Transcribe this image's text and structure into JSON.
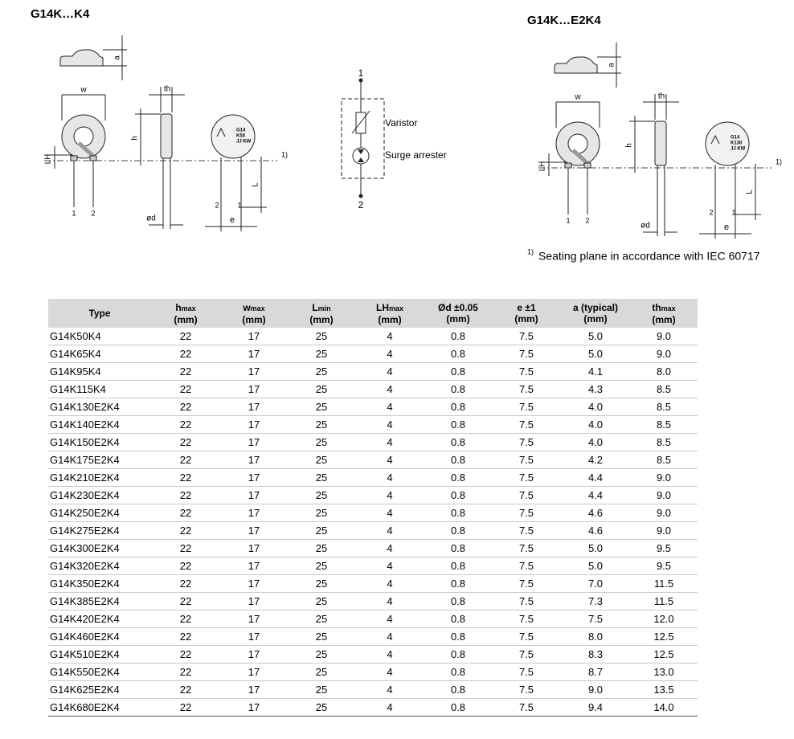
{
  "diagram_left": {
    "title": "G14K…K4",
    "labels": {
      "a": "a",
      "w": "w",
      "th": "th",
      "h": "h",
      "lh": "LH",
      "pin1": "1",
      "pin2": "2",
      "d": "ød",
      "e": "e",
      "L": "L",
      "pin2b": "2",
      "pin1b": "1",
      "note": "1)"
    },
    "marking": [
      "G14",
      "K50",
      "JJ KW"
    ]
  },
  "diagram_right": {
    "title": "G14K…E2K4",
    "labels": {
      "a": "a",
      "w": "w",
      "th": "th",
      "h": "h",
      "lh": "LH",
      "pin1": "1",
      "pin2": "2",
      "d": "ød",
      "e": "e",
      "L": "L",
      "pin2b": "2",
      "pin1b": "1",
      "note": "1)"
    },
    "marking": [
      "G14",
      "K130",
      "JJ KW"
    ]
  },
  "symbol": {
    "top": "1",
    "bottom": "2",
    "varistor": "Varistor",
    "arrester": "Surge arrester"
  },
  "footnote": {
    "mark": "1)",
    "text": "Seating plane in accordance with IEC 60717"
  },
  "table": {
    "header": [
      {
        "label": "Type"
      },
      {
        "label": "h",
        "sub": "max",
        "unit": "(mm)"
      },
      {
        "label": "w",
        "sub": "max",
        "unit": "(mm)"
      },
      {
        "label": "L",
        "sub": "min",
        "unit": "(mm)"
      },
      {
        "label": "LH",
        "sub": "max",
        "unit": "(mm)"
      },
      {
        "label": "Ød ±0.05",
        "unit": "(mm)"
      },
      {
        "label": "e ±1",
        "unit": "(mm)"
      },
      {
        "label": "a (typical)",
        "unit": "(mm)"
      },
      {
        "label": "th",
        "sub": "max",
        "unit": "(mm)"
      }
    ],
    "rows": [
      [
        "G14K50K4",
        "22",
        "17",
        "25",
        "4",
        "0.8",
        "7.5",
        "5.0",
        "9.0"
      ],
      [
        "G14K65K4",
        "22",
        "17",
        "25",
        "4",
        "0.8",
        "7.5",
        "5.0",
        "9.0"
      ],
      [
        "G14K95K4",
        "22",
        "17",
        "25",
        "4",
        "0.8",
        "7.5",
        "4.1",
        "8.0"
      ],
      [
        "G14K115K4",
        "22",
        "17",
        "25",
        "4",
        "0.8",
        "7.5",
        "4.3",
        "8.5"
      ],
      [
        "G14K130E2K4",
        "22",
        "17",
        "25",
        "4",
        "0.8",
        "7.5",
        "4.0",
        "8.5"
      ],
      [
        "G14K140E2K4",
        "22",
        "17",
        "25",
        "4",
        "0.8",
        "7.5",
        "4.0",
        "8.5"
      ],
      [
        "G14K150E2K4",
        "22",
        "17",
        "25",
        "4",
        "0.8",
        "7.5",
        "4.0",
        "8.5"
      ],
      [
        "G14K175E2K4",
        "22",
        "17",
        "25",
        "4",
        "0.8",
        "7.5",
        "4.2",
        "8.5"
      ],
      [
        "G14K210E2K4",
        "22",
        "17",
        "25",
        "4",
        "0.8",
        "7.5",
        "4.4",
        "9.0"
      ],
      [
        "G14K230E2K4",
        "22",
        "17",
        "25",
        "4",
        "0.8",
        "7.5",
        "4.4",
        "9.0"
      ],
      [
        "G14K250E2K4",
        "22",
        "17",
        "25",
        "4",
        "0.8",
        "7.5",
        "4.6",
        "9.0"
      ],
      [
        "G14K275E2K4",
        "22",
        "17",
        "25",
        "4",
        "0.8",
        "7.5",
        "4.6",
        "9.0"
      ],
      [
        "G14K300E2K4",
        "22",
        "17",
        "25",
        "4",
        "0.8",
        "7.5",
        "5.0",
        "9.5"
      ],
      [
        "G14K320E2K4",
        "22",
        "17",
        "25",
        "4",
        "0.8",
        "7.5",
        "5.0",
        "9.5"
      ],
      [
        "G14K350E2K4",
        "22",
        "17",
        "25",
        "4",
        "0.8",
        "7.5",
        "7.0",
        "11.5"
      ],
      [
        "G14K385E2K4",
        "22",
        "17",
        "25",
        "4",
        "0.8",
        "7.5",
        "7.3",
        "11.5"
      ],
      [
        "G14K420E2K4",
        "22",
        "17",
        "25",
        "4",
        "0.8",
        "7.5",
        "7.5",
        "12.0"
      ],
      [
        "G14K460E2K4",
        "22",
        "17",
        "25",
        "4",
        "0.8",
        "7.5",
        "8.0",
        "12.5"
      ],
      [
        "G14K510E2K4",
        "22",
        "17",
        "25",
        "4",
        "0.8",
        "7.5",
        "8.3",
        "12.5"
      ],
      [
        "G14K550E2K4",
        "22",
        "17",
        "25",
        "4",
        "0.8",
        "7.5",
        "8.7",
        "13.0"
      ],
      [
        "G14K625E2K4",
        "22",
        "17",
        "25",
        "4",
        "0.8",
        "7.5",
        "9.0",
        "13.5"
      ],
      [
        "G14K680E2K4",
        "22",
        "17",
        "25",
        "4",
        "0.8",
        "7.5",
        "9.4",
        "14.0"
      ]
    ]
  }
}
